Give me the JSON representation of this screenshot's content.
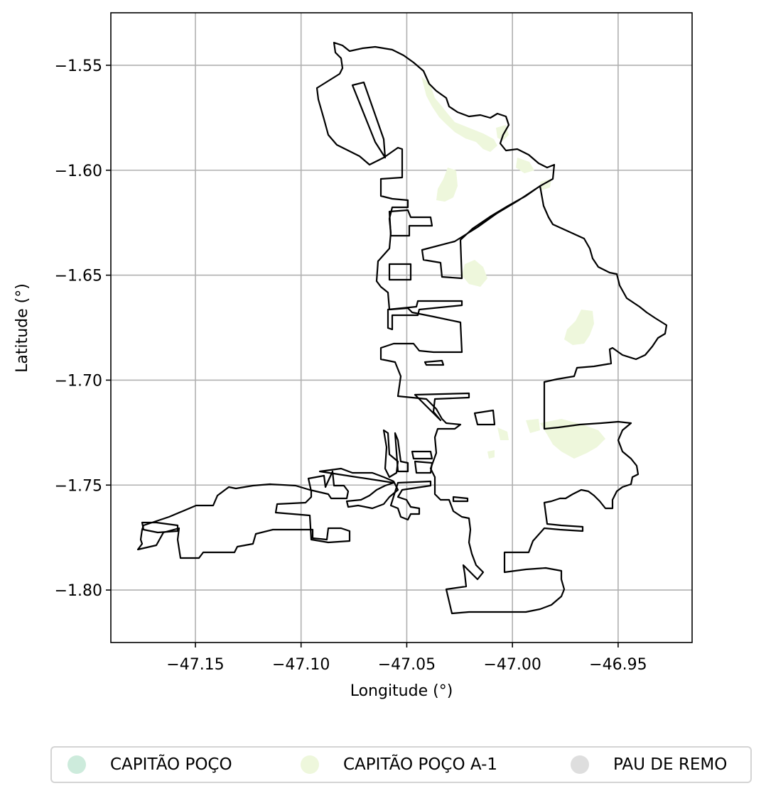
{
  "map": {
    "xlabel": "Longitude (°)",
    "ylabel": "Latitude (°)",
    "x_ticks": [
      "−47.15",
      "−47.10",
      "−47.05",
      "−47.00",
      "−46.95"
    ],
    "y_ticks": [
      "−1.55",
      "−1.60",
      "−1.65",
      "−1.70",
      "−1.75",
      "−1.80"
    ],
    "x_tick_values": [
      -47.15,
      -47.1,
      -47.05,
      -47.0,
      -46.95
    ],
    "y_tick_values": [
      -1.55,
      -1.6,
      -1.65,
      -1.7,
      -1.75,
      -1.8
    ],
    "xlim": [
      -47.19,
      -46.915
    ],
    "ylim": [
      -1.825,
      -1.525
    ],
    "grid": true,
    "boundary_color": "#000000",
    "fill_colors": {
      "capitao_poco": "#cdebdc",
      "capitao_poco_a1": "#eef7dc",
      "pau_de_remo": "#dedede"
    }
  },
  "legend": {
    "placement": "bottom-center",
    "items": [
      {
        "label": "CAPITÃO POÇO",
        "color": "#cdebdc"
      },
      {
        "label": "CAPITÃO POÇO A-1",
        "color": "#eef7dc"
      },
      {
        "label": "PAU DE REMO",
        "color": "#dedede"
      }
    ]
  }
}
